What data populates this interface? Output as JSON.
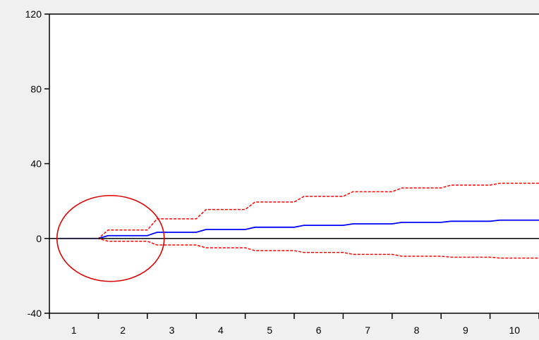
{
  "chart_data": {
    "type": "line",
    "title": "",
    "xlabel": "",
    "ylabel": "",
    "x": [
      1,
      2,
      3,
      4,
      5,
      6,
      7,
      8,
      9,
      10
    ],
    "xlim": [
      0.5,
      10.5
    ],
    "ylim": [
      -40,
      120
    ],
    "yticks": [
      -40,
      0,
      40,
      80,
      120
    ],
    "ytick_labels": [
      "-40",
      "0",
      "40",
      "80",
      "120"
    ],
    "xtick_labels": [
      "1",
      "2",
      "3",
      "4",
      "5",
      "6",
      "7",
      "8",
      "9",
      "10"
    ],
    "grid": false,
    "legend": "none",
    "zero_line": true,
    "series": [
      {
        "role": "response",
        "style": "solid",
        "color": "#0000ff",
        "values": [
          0,
          1.5,
          3.3,
          4.8,
          6.0,
          7.0,
          7.8,
          8.6,
          9.2,
          9.8
        ]
      },
      {
        "role": "upper-band",
        "style": "dashed",
        "color": "#ff0000",
        "values": [
          0,
          4.5,
          10.5,
          15.5,
          19.5,
          22.5,
          25.0,
          27.0,
          28.5,
          29.5
        ]
      },
      {
        "role": "lower-band",
        "style": "dashed",
        "color": "#ff0000",
        "values": [
          0,
          -1.5,
          -3.5,
          -5.0,
          -6.5,
          -7.5,
          -8.5,
          -9.5,
          -10.0,
          -10.5
        ]
      }
    ],
    "annotation": {
      "shape": "ellipse",
      "color": "#dd0000",
      "center": [
        1.75,
        0
      ]
    }
  }
}
